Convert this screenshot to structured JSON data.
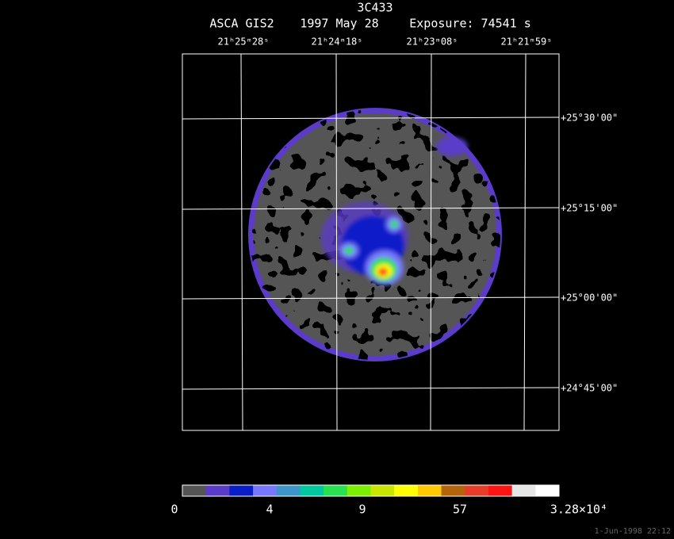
{
  "header": {
    "object": "3C433",
    "instrument": "ASCA GIS2",
    "date": "1997 May 28",
    "exposure": "Exposure: 74541 s"
  },
  "ra_labels": [
    "21ʰ25ᵐ28ˢ",
    "21ʰ24ᵐ18ˢ",
    "21ʰ23ᵐ08ˢ",
    "21ʰ21ᵐ59ˢ"
  ],
  "dec_labels": [
    "+25°30'00\"",
    "+25°15'00\"",
    "+25°00'00\"",
    "+24°45'00\""
  ],
  "colorbar": {
    "colors": [
      "#555555",
      "#5a3cc8",
      "#0a1ec8",
      "#7878ff",
      "#3c96c8",
      "#00c8a0",
      "#28e050",
      "#7cf000",
      "#c8e600",
      "#ffff00",
      "#ffc800",
      "#b4640a",
      "#e63c28",
      "#ff1414",
      "#e6e6e6",
      "#ffffff"
    ],
    "labels": [
      "0",
      "4",
      "9",
      "57",
      "3.28×10⁴"
    ]
  },
  "timestamp": "1-Jun-1998 22:12"
}
